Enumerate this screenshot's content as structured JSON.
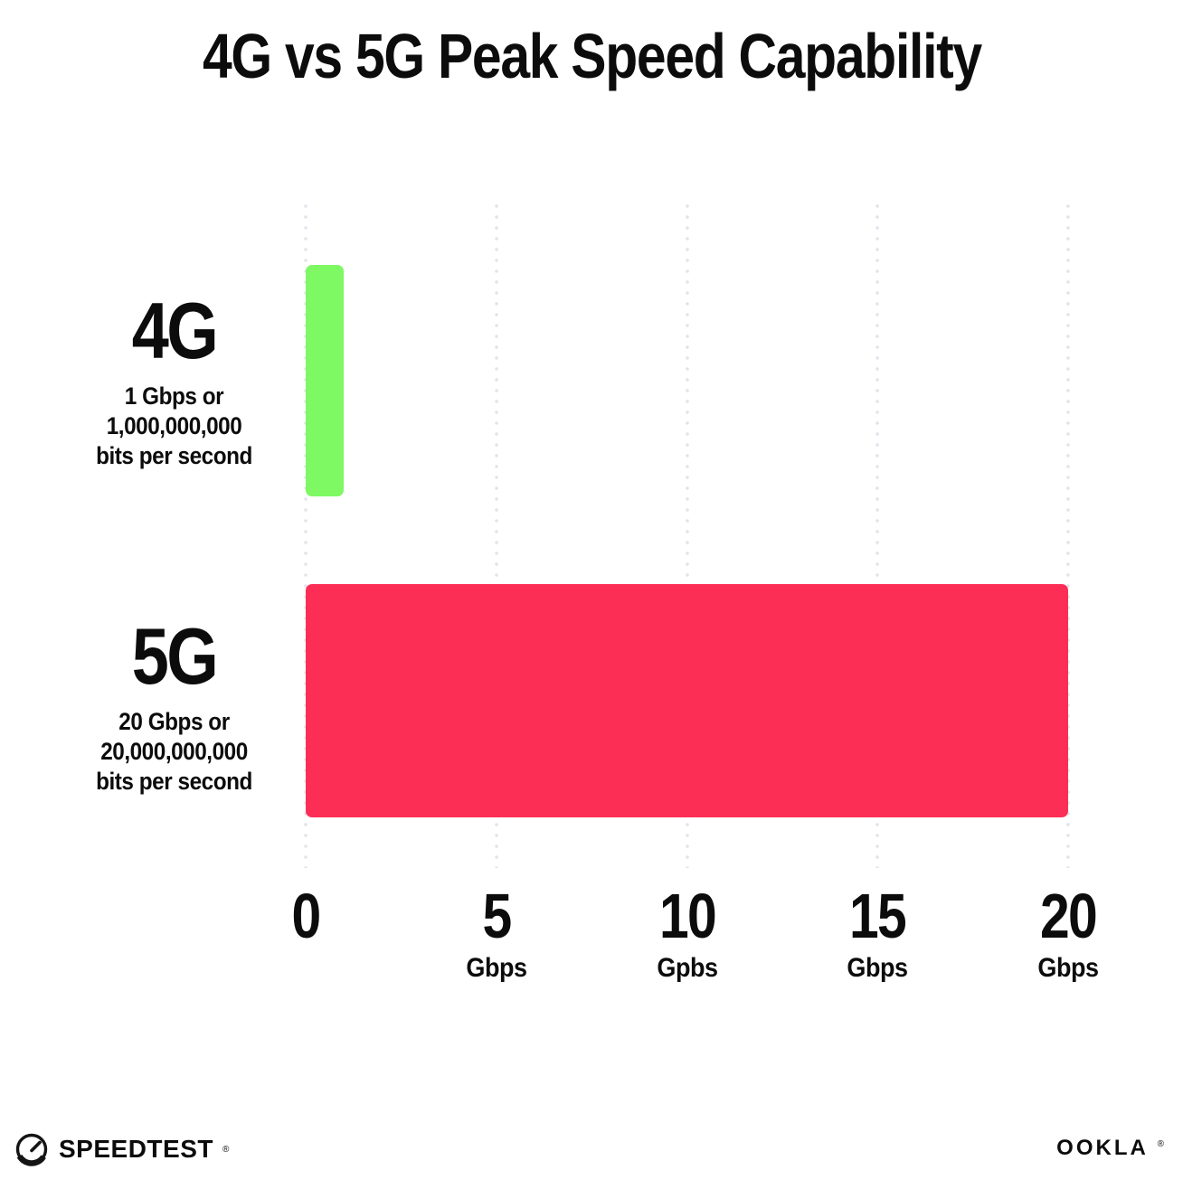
{
  "page": {
    "background": "#ffffff",
    "text_color": "#0c0c0c"
  },
  "title": "4G vs 5G Peak Speed Capability",
  "chart_data": {
    "type": "bar",
    "orientation": "horizontal",
    "title": "4G vs 5G Peak Speed Capability",
    "categories": [
      "4G",
      "5G"
    ],
    "values": [
      1,
      20
    ],
    "value_unit": "Gbps",
    "bar_colors": [
      "#7ef964",
      "#fd2e56"
    ],
    "category_sublabels": [
      [
        "1 Gbps or",
        "1,000,000,000",
        "bits per second"
      ],
      [
        "20 Gbps or",
        "20,000,000,000",
        "bits per second"
      ]
    ],
    "xlim": [
      0,
      20
    ],
    "x_ticks": [
      {
        "value": 0,
        "label": "0",
        "unit": ""
      },
      {
        "value": 5,
        "label": "5",
        "unit": "Gbps"
      },
      {
        "value": 10,
        "label": "10",
        "unit": "Gpbs"
      },
      {
        "value": 15,
        "label": "15",
        "unit": "Gbps"
      },
      {
        "value": 20,
        "label": "20",
        "unit": "Gbps"
      }
    ],
    "grid": "vertical dotted",
    "gridline_color": "#e2e2ec",
    "legend": "none"
  },
  "footer": {
    "speedtest_label": "SPEEDTEST",
    "speedtest_trademark": "®",
    "ookla_label": "OOKLA",
    "ookla_trademark": "®"
  }
}
